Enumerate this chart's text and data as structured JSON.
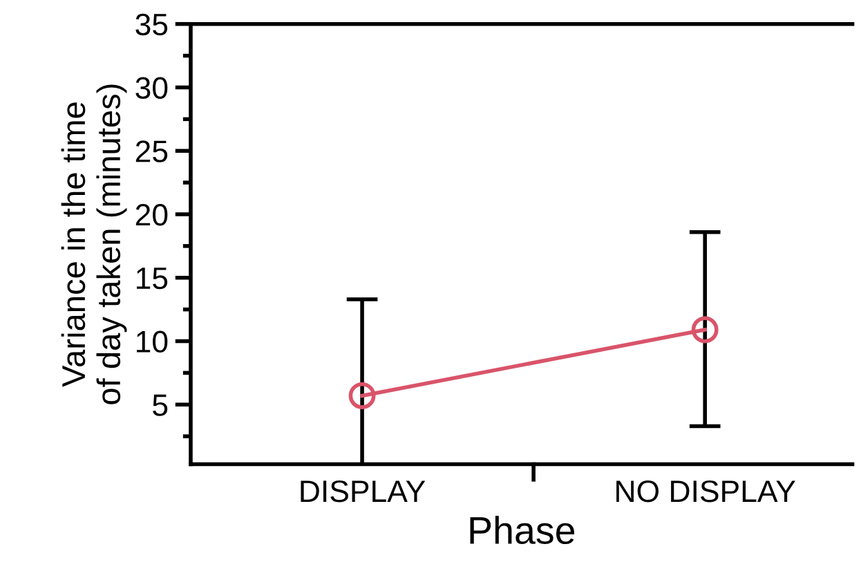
{
  "chart_data": {
    "type": "line",
    "xlabel": "Phase",
    "ylabel": "Variance in the time\nof day taken (minutes)",
    "categories": [
      "DISPLAY",
      "NO DISPLAY"
    ],
    "series": [
      {
        "color": "#d9546a",
        "values": [
          5.7,
          10.9
        ],
        "errors": [
          [
            0.3,
            13.3
          ],
          [
            3.3,
            18.6
          ]
        ]
      }
    ],
    "ylim": [
      0.3,
      35
    ],
    "yticks": [
      5,
      10,
      15,
      20,
      25,
      30,
      35
    ],
    "marker": "circle",
    "grid": false,
    "legend": false
  }
}
